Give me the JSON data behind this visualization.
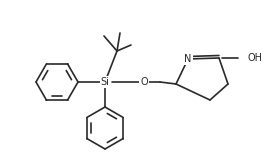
{
  "bg_color": "#ffffff",
  "line_color": "#2a2a2a",
  "bond_lw": 1.2,
  "font_size": 7.0,
  "si_label": "Si",
  "o_label": "O",
  "n_label": "N",
  "oh_label": "OH",
  "figsize": [
    2.66,
    1.58
  ],
  "dpi": 100,
  "xlim": [
    0,
    266
  ],
  "ylim": [
    0,
    158
  ]
}
